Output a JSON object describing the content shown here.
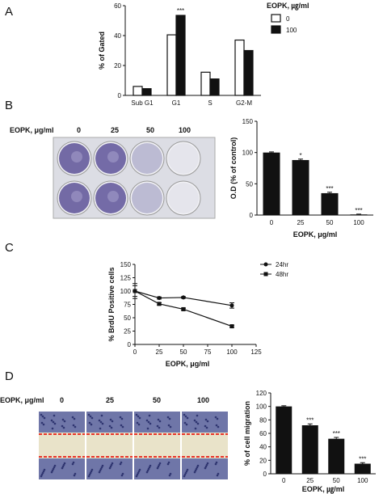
{
  "panels": {
    "a": "A",
    "b": "B",
    "c": "C",
    "d": "D"
  },
  "chart_data": [
    {
      "type": "bar",
      "panel": "A",
      "categories": [
        "Sub G1",
        "G1",
        "S",
        "G2-M"
      ],
      "series": [
        {
          "name": "0",
          "values": [
            6,
            40.5,
            15.5,
            37
          ],
          "color": "#ffffff"
        },
        {
          "name": "100",
          "values": [
            4.5,
            53.5,
            11,
            30
          ],
          "color": "#111111"
        }
      ],
      "annotations": [
        {
          "category": "G1",
          "series": "100",
          "text": "***"
        }
      ],
      "ylabel": "% of Gated",
      "ylim": [
        0,
        60
      ],
      "yticks": [
        0,
        20,
        40,
        60
      ],
      "legend_title": "EOPK, ㎍/ml",
      "legend_position": "top-right"
    },
    {
      "type": "bar",
      "panel": "B",
      "categories": [
        "0",
        "25",
        "50",
        "100"
      ],
      "values": [
        100,
        88,
        35,
        1
      ],
      "errors": [
        1,
        1.5,
        1.5,
        0.5
      ],
      "annotations": [
        "",
        "*",
        "***",
        "***"
      ],
      "ylabel": "O.D (% of control)",
      "xlabel": "EOPK, μg/ml",
      "ylim": [
        0,
        150
      ],
      "yticks": [
        0,
        50,
        100,
        150
      ]
    },
    {
      "type": "line",
      "panel": "C",
      "x": [
        0,
        25,
        50,
        100
      ],
      "series": [
        {
          "name": "24hr",
          "values": [
            100,
            87,
            88,
            73
          ],
          "errors": [
            10,
            2,
            1.5,
            5
          ],
          "marker": "circle"
        },
        {
          "name": "48hr",
          "values": [
            100,
            76,
            66,
            34
          ],
          "errors": [
            14,
            2,
            2,
            2
          ],
          "marker": "square"
        }
      ],
      "ylabel": "% BrdU Positive cells",
      "xlabel": "EOPK, μg/ml",
      "xlim": [
        0,
        125
      ],
      "xticks": [
        0,
        25,
        50,
        75,
        100,
        125
      ],
      "ylim": [
        0,
        150
      ],
      "yticks": [
        0,
        25,
        50,
        75,
        100,
        125,
        150
      ],
      "legend_position": "top-right"
    },
    {
      "type": "bar",
      "panel": "D",
      "categories": [
        "0",
        "25",
        "50",
        "100"
      ],
      "values": [
        100,
        72,
        52,
        15
      ],
      "errors": [
        1,
        2,
        2,
        1.5
      ],
      "annotations": [
        "",
        "***",
        "***",
        "***"
      ],
      "ylabel": "% of cell migration",
      "xlabel": "EOPK, ㎍/ml",
      "ylim": [
        0,
        120
      ],
      "yticks": [
        0,
        20,
        40,
        60,
        80,
        100,
        120
      ]
    }
  ],
  "image_headers": {
    "b_label": "EOPK, μg/ml",
    "b_doses": [
      "0",
      "25",
      "50",
      "100"
    ],
    "d_label": "EOPK, μg/ml",
    "d_doses": [
      "0",
      "25",
      "50",
      "100"
    ]
  },
  "colors": {
    "well_stain": "#5a4f9c",
    "well_light": "#d9d8e6",
    "wound_line": "#e8342a",
    "wound_bg": "#e9e3c9"
  }
}
